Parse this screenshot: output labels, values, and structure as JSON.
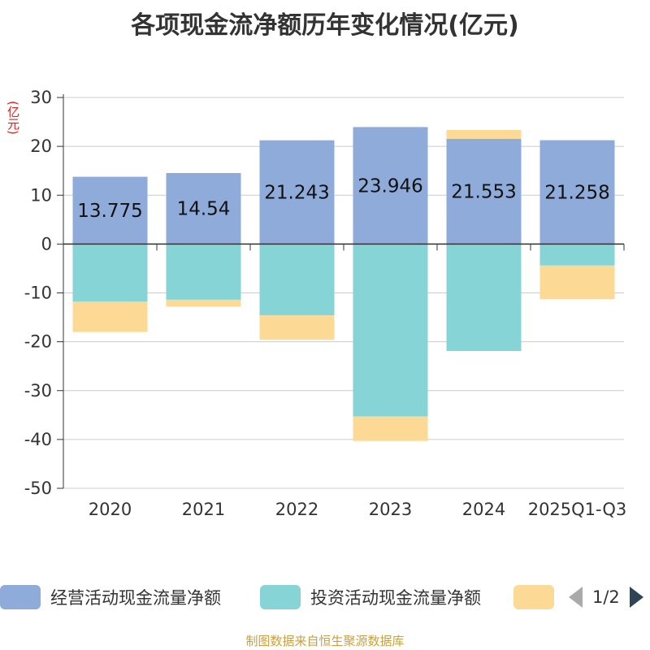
{
  "chart_data": {
    "type": "bar",
    "stacked": true,
    "title": "各项现金流净额历年变化情况(亿元)",
    "unit_label": "(亿元)",
    "categories": [
      "2020",
      "2021",
      "2022",
      "2023",
      "2024",
      "2025Q1-Q3"
    ],
    "ylim": [
      -50,
      30
    ],
    "yticks": [
      30,
      20,
      10,
      0,
      -10,
      -20,
      -30,
      -40,
      -50
    ],
    "grid": true,
    "series": [
      {
        "name": "经营活动现金流量净额",
        "color": "#8eabd9",
        "values": [
          13.775,
          14.54,
          21.243,
          23.946,
          21.553,
          21.258
        ],
        "show_labels": true
      },
      {
        "name": "投资活动现金流量净额",
        "color": "#86d4d6",
        "values": [
          -11.8,
          -11.4,
          -14.6,
          -35.3,
          -21.9,
          -4.4
        ],
        "show_labels": false
      },
      {
        "name": "",
        "color": "#fdd996",
        "values": [
          -6.2,
          -1.4,
          -5.0,
          -5.0,
          1.8,
          -6.9
        ],
        "show_labels": false
      }
    ]
  },
  "legend": {
    "items": [
      {
        "label": "经营活动现金流量净额",
        "color": "#8eabd9"
      },
      {
        "label": "投资活动现金流量净额",
        "color": "#86d4d6"
      },
      {
        "label": "",
        "color": "#fdd996"
      }
    ],
    "pager": "1/2"
  },
  "source": "制图数据来自恒生聚源数据库"
}
